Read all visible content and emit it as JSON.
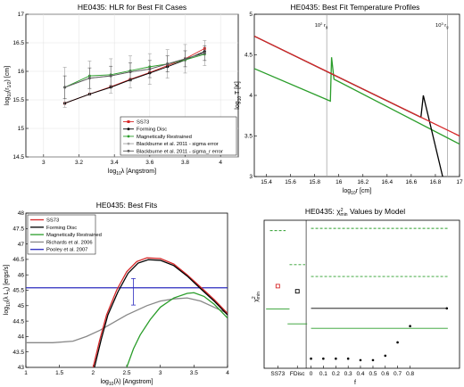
{
  "chart_data": [
    {
      "type": "line",
      "title": "HE0435: HLR for Best Fit Cases",
      "xlabel": "log",
      "xlabel_sub": "10",
      "xlabel_rest": "λ [Angstrom]",
      "ylabel": "log",
      "ylabel_sub": "10",
      "ylabel_rest": "(r",
      "ylabel_sub2": "1/2",
      "ylabel_tail": ") [cm]",
      "xlim": [
        2.9,
        4.1
      ],
      "ylim": [
        14.5,
        17
      ],
      "xticks": [
        "3",
        "3.2",
        "3.4",
        "3.6",
        "3.8",
        "4"
      ],
      "yticks": [
        "14.5",
        "15",
        "15.5",
        "16",
        "16.5",
        "17"
      ],
      "legend_position": "bottom-right",
      "x": [
        3.12,
        3.26,
        3.38,
        3.49,
        3.6,
        3.7,
        3.8,
        3.91
      ],
      "series": [
        {
          "name": "SS73",
          "color": "#d62728",
          "marker": "square",
          "values": [
            15.44,
            15.6,
            15.73,
            15.86,
            15.98,
            16.1,
            16.22,
            16.4
          ]
        },
        {
          "name": "Forming Disc",
          "color": "#000000",
          "marker": "circle",
          "values": [
            15.44,
            15.6,
            15.72,
            15.85,
            15.97,
            16.08,
            16.2,
            16.35
          ]
        },
        {
          "name": "Magnetically Restrained",
          "color": "#2a9d2a",
          "marker": "circle",
          "values": [
            15.72,
            15.92,
            15.94,
            16.01,
            16.08,
            16.13,
            16.2,
            16.3
          ]
        },
        {
          "name": "Blackburne et al. 2011 - sigma error",
          "color": "#a0a0a0",
          "marker": "circle",
          "values": [
            15.72,
            15.88,
            15.92,
            15.99,
            16.04,
            16.13,
            16.22,
            16.32
          ],
          "err": [
            0.35,
            0.3,
            0.3,
            0.28,
            0.27,
            0.25,
            0.25,
            0.22
          ]
        },
        {
          "name": "Blackburne et al. 2011 - sigma_r error",
          "color": "#5a5a5a",
          "marker": "circle",
          "values": [
            15.72,
            15.88,
            15.92,
            15.99,
            16.04,
            16.13,
            16.22,
            16.32
          ],
          "err": [
            0.2,
            0.18,
            0.17,
            0.16,
            0.15,
            0.14,
            0.14,
            0.13
          ]
        }
      ]
    },
    {
      "type": "line",
      "title": "HE0435: Best Fit Temperature Profiles",
      "xlabel": "log",
      "xlabel_sub": "10",
      "xlabel_rest": "r [cm]",
      "ylabel": "log",
      "ylabel_sub": "10",
      "ylabel_rest": " T [K]",
      "xlim": [
        15.3,
        17
      ],
      "ylim": [
        3,
        5
      ],
      "xticks": [
        "15.4",
        "15.6",
        "15.8",
        "16",
        "16.2",
        "16.4",
        "16.6",
        "16.8",
        "17"
      ],
      "yticks": [
        "3",
        "3.5",
        "4",
        "4.5",
        "5"
      ],
      "vlines": [
        {
          "x": 15.9,
          "label": "10",
          "sup": "2",
          "tail": " r",
          "sub": "g"
        },
        {
          "x": 16.9,
          "label": "10",
          "sup": "3",
          "tail": " r",
          "sub": "g"
        }
      ],
      "series": [
        {
          "name": "SS73",
          "color": "#d62728",
          "points": [
            [
              15.3,
              4.73
            ],
            [
              17.0,
              3.5
            ]
          ]
        },
        {
          "name": "Forming Disc",
          "color": "#000000",
          "points": [
            [
              15.3,
              4.73
            ],
            [
              16.68,
              3.73
            ],
            [
              16.7,
              4.0
            ],
            [
              16.86,
              3.0
            ]
          ]
        },
        {
          "name": "Magnetically Restrained",
          "color": "#2a9d2a",
          "points": [
            [
              15.3,
              4.33
            ],
            [
              15.93,
              3.93
            ],
            [
              15.94,
              4.47
            ],
            [
              15.96,
              4.2
            ],
            [
              17.0,
              3.4
            ]
          ]
        }
      ]
    },
    {
      "type": "line",
      "title": "HE0435: Best Fits",
      "xlabel": "log",
      "xlabel_sub": "10",
      "xlabel_rest": "(λ) [Angstrom]",
      "ylabel": "log",
      "ylabel_sub": "10",
      "ylabel_rest": "(λ L",
      "ylabel_sub2": "λ",
      "ylabel_tail": ") [ergs/s]",
      "xlim": [
        1,
        4
      ],
      "ylim": [
        43,
        48
      ],
      "xticks": [
        "1",
        "1.5",
        "2",
        "2.5",
        "3",
        "3.5",
        "4"
      ],
      "yticks": [
        "43",
        "43.5",
        "44",
        "44.5",
        "45",
        "45.5",
        "46",
        "46.5",
        "47",
        "47.5",
        "48"
      ],
      "legend_position": "top-left",
      "series": [
        {
          "name": "SS73",
          "color": "#d62728",
          "points": [
            [
              2.0,
              43.0
            ],
            [
              2.1,
              43.9
            ],
            [
              2.2,
              44.7
            ],
            [
              2.35,
              45.5
            ],
            [
              2.5,
              46.1
            ],
            [
              2.65,
              46.43
            ],
            [
              2.8,
              46.55
            ],
            [
              3.0,
              46.53
            ],
            [
              3.2,
              46.35
            ],
            [
              3.4,
              46.0
            ],
            [
              3.6,
              45.6
            ],
            [
              3.8,
              45.2
            ],
            [
              4.0,
              44.75
            ]
          ]
        },
        {
          "name": "Forming Disc",
          "color": "#000000",
          "points": [
            [
              2.02,
              43.0
            ],
            [
              2.12,
              43.9
            ],
            [
              2.22,
              44.7
            ],
            [
              2.37,
              45.45
            ],
            [
              2.52,
              46.05
            ],
            [
              2.67,
              46.38
            ],
            [
              2.82,
              46.49
            ],
            [
              3.0,
              46.47
            ],
            [
              3.2,
              46.3
            ],
            [
              3.4,
              45.96
            ],
            [
              3.6,
              45.55
            ],
            [
              3.8,
              45.15
            ],
            [
              4.0,
              44.7
            ]
          ]
        },
        {
          "name": "Magnetically Restrained",
          "color": "#2a9d2a",
          "points": [
            [
              2.5,
              43.0
            ],
            [
              2.6,
              43.6
            ],
            [
              2.7,
              44.05
            ],
            [
              2.85,
              44.55
            ],
            [
              3.0,
              44.95
            ],
            [
              3.2,
              45.25
            ],
            [
              3.4,
              45.4
            ],
            [
              3.5,
              45.42
            ],
            [
              3.65,
              45.3
            ],
            [
              3.8,
              45.05
            ],
            [
              4.0,
              44.6
            ]
          ]
        },
        {
          "name": "Richards et al. 2006",
          "color": "#888888",
          "points": [
            [
              1.0,
              43.8
            ],
            [
              1.4,
              43.8
            ],
            [
              1.7,
              43.85
            ],
            [
              1.9,
              44.0
            ],
            [
              2.1,
              44.2
            ],
            [
              2.3,
              44.45
            ],
            [
              2.5,
              44.7
            ],
            [
              2.8,
              45.0
            ],
            [
              3.0,
              45.15
            ],
            [
              3.2,
              45.22
            ],
            [
              3.4,
              45.25
            ],
            [
              3.6,
              45.15
            ],
            [
              3.8,
              44.95
            ],
            [
              4.0,
              44.75
            ]
          ]
        },
        {
          "name": "Pooley et al. 2007",
          "color": "#2b2bbf",
          "points": [
            [
              1.0,
              45.58
            ],
            [
              4.0,
              45.58
            ]
          ]
        }
      ],
      "errorbar": {
        "x": 2.6,
        "y": 45.45,
        "err": 0.43,
        "color": "#2b2bbf"
      }
    },
    {
      "type": "scatter",
      "title": "HE0435: ",
      "title_sym": "χ",
      "title_sup": "2",
      "title_sub": "min",
      "title_rest": " Values by Model",
      "xlabel": "f",
      "ylabel": "χ",
      "ylabel_sup": "2",
      "ylabel_sub": "min",
      "xlim": [
        0,
        1
      ],
      "ylim": [
        0,
        1
      ],
      "xticks": [
        "SS73",
        "FDisc",
        "0",
        "0.1",
        "0.2",
        "0.3",
        "0.4",
        "0.5",
        "0.6",
        "0.7",
        "0.8"
      ],
      "xtick_pos": [
        0.07,
        0.17,
        0.24,
        0.303,
        0.367,
        0.43,
        0.493,
        0.557,
        0.62,
        0.683,
        0.747
      ],
      "markers": [
        {
          "x": 0.07,
          "y": 0.555,
          "shape": "square",
          "color": "#d62728"
        },
        {
          "x": 0.17,
          "y": 0.52,
          "shape": "square",
          "color": "#000000"
        },
        {
          "x": 0.24,
          "y": 0.065,
          "shape": "dot"
        },
        {
          "x": 0.303,
          "y": 0.065,
          "shape": "dot"
        },
        {
          "x": 0.367,
          "y": 0.065,
          "shape": "dot"
        },
        {
          "x": 0.43,
          "y": 0.065,
          "shape": "dot"
        },
        {
          "x": 0.493,
          "y": 0.055,
          "shape": "dot"
        },
        {
          "x": 0.557,
          "y": 0.055,
          "shape": "dot"
        },
        {
          "x": 0.62,
          "y": 0.085,
          "shape": "dot"
        },
        {
          "x": 0.683,
          "y": 0.175,
          "shape": "dot"
        },
        {
          "x": 0.747,
          "y": 0.285,
          "shape": "dot"
        },
        {
          "x": 0.935,
          "y": 0.405,
          "shape": "dot"
        }
      ],
      "segments": [
        {
          "x1": 0.01,
          "x2": 0.13,
          "y": 0.4,
          "color": "#2a9d2a",
          "dash": false
        },
        {
          "x1": 0.03,
          "x2": 0.11,
          "y": 0.93,
          "color": "#2a9d2a",
          "dash": true
        },
        {
          "x1": 0.12,
          "x2": 0.22,
          "y": 0.3,
          "color": "#2a9d2a",
          "dash": false
        },
        {
          "x1": 0.13,
          "x2": 0.21,
          "y": 0.7,
          "color": "#2a9d2a",
          "dash": true
        },
        {
          "x1": 0.24,
          "x2": 0.94,
          "y": 0.405,
          "color": "#000000",
          "dash": false
        },
        {
          "x1": 0.24,
          "x2": 0.94,
          "y": 0.27,
          "color": "#2a9d2a",
          "dash": false
        },
        {
          "x1": 0.24,
          "x2": 0.94,
          "y": 0.62,
          "color": "#2a9d2a",
          "dash": true
        },
        {
          "x1": 0.24,
          "x2": 0.94,
          "y": 0.945,
          "color": "#2a9d2a",
          "dash": true
        }
      ],
      "separator_x": 0.215
    }
  ]
}
